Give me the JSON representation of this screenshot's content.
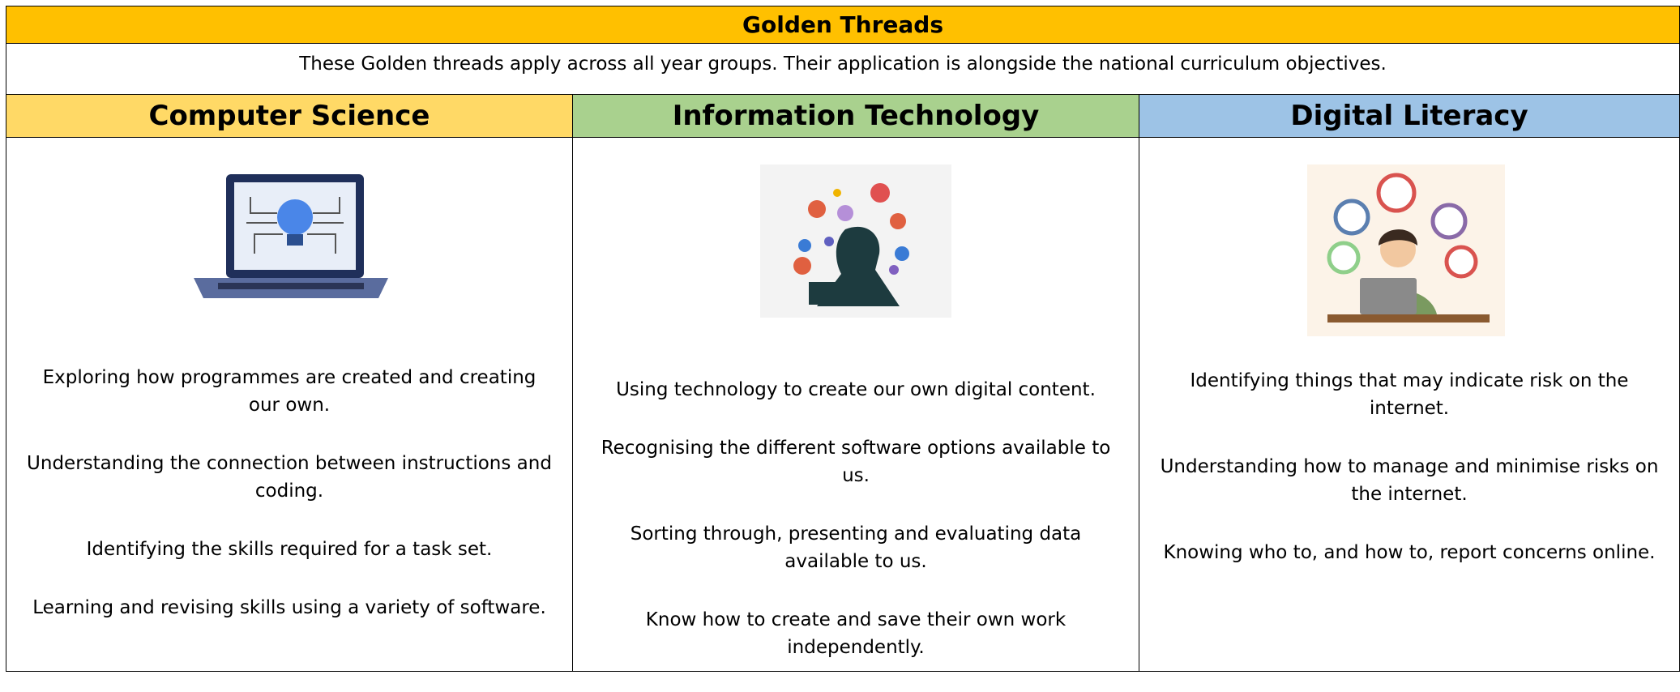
{
  "title": "Golden Threads",
  "subtitle": "These Golden threads apply across all year groups. Their application is alongside the national curriculum objectives.",
  "columns": [
    {
      "heading": "Computer Science",
      "items": [
        "Exploring how programmes are created and creating our own.",
        "Understanding the connection between instructions and coding.",
        "Identifying the skills required for a task set.",
        "Learning and revising skills using a variety of software."
      ]
    },
    {
      "heading": "Information Technology",
      "items": [
        "Using technology to create our own digital content.",
        "Recognising the different software options available to us.",
        "Sorting through, presenting and evaluating data available to us.",
        "Know how to create and save their own work independently."
      ]
    },
    {
      "heading": "Digital Literacy",
      "items": [
        "Identifying things that may indicate risk on the internet.",
        "Understanding how to manage and minimise risks on the internet.",
        "Knowing who to, and how to, report concerns online."
      ]
    }
  ]
}
